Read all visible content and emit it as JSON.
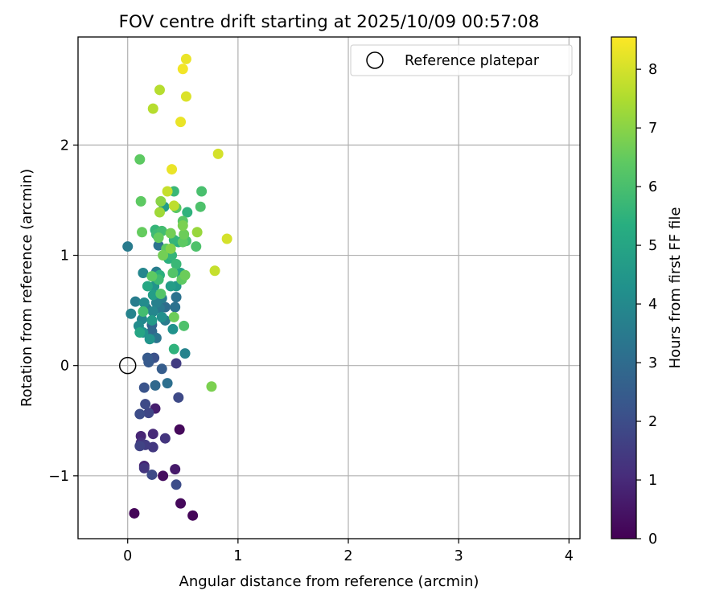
{
  "chart_data": {
    "type": "scatter",
    "title": "FOV centre drift starting at 2025/10/09 00:57:08",
    "xlabel": "Angular distance from reference (arcmin)",
    "ylabel": "Rotation from reference (arcmin)",
    "xlim": [
      -0.45,
      4.1
    ],
    "ylim": [
      -1.57,
      2.98
    ],
    "xticks": [
      0,
      1,
      2,
      3,
      4
    ],
    "yticks": [
      -1,
      0,
      1,
      2
    ],
    "xtick_labels": [
      "0",
      "1",
      "2",
      "3",
      "4"
    ],
    "ytick_labels": [
      "−1",
      "0",
      "1",
      "2"
    ],
    "grid": true,
    "legend": {
      "position": "top-right",
      "entries": [
        {
          "label": "Reference platepar",
          "marker": "open-circle"
        }
      ]
    },
    "reference_point": {
      "x": 0,
      "y": 0
    },
    "colorbar": {
      "label": "Hours from first FF file",
      "min": 0,
      "max": 8.55,
      "ticks": [
        0,
        1,
        2,
        3,
        4,
        5,
        6,
        7,
        8
      ],
      "tick_labels": [
        "0",
        "1",
        "2",
        "3",
        "4",
        "5",
        "6",
        "7",
        "8"
      ],
      "colormap": "viridis"
    },
    "points": [
      {
        "x": 0.06,
        "y": -1.34,
        "t": 0.1
      },
      {
        "x": 0.59,
        "y": -1.36,
        "t": 0.1
      },
      {
        "x": 0.48,
        "y": -1.25,
        "t": 0.2
      },
      {
        "x": 0.44,
        "y": -1.08,
        "t": 2.0
      },
      {
        "x": 0.32,
        "y": -1.0,
        "t": 0.3
      },
      {
        "x": 0.22,
        "y": -0.99,
        "t": 1.9
      },
      {
        "x": 0.43,
        "y": -0.94,
        "t": 0.6
      },
      {
        "x": 0.15,
        "y": -0.93,
        "t": 1.3
      },
      {
        "x": 0.15,
        "y": -0.91,
        "t": 0.8
      },
      {
        "x": 0.23,
        "y": -0.74,
        "t": 1.4
      },
      {
        "x": 0.11,
        "y": -0.73,
        "t": 1.7
      },
      {
        "x": 0.16,
        "y": -0.72,
        "t": 1.5
      },
      {
        "x": 0.12,
        "y": -0.7,
        "t": 1.2
      },
      {
        "x": 0.34,
        "y": -0.66,
        "t": 1.3
      },
      {
        "x": 0.12,
        "y": -0.64,
        "t": 0.9
      },
      {
        "x": 0.23,
        "y": -0.62,
        "t": 1.0
      },
      {
        "x": 0.47,
        "y": -0.58,
        "t": 0.2
      },
      {
        "x": 0.11,
        "y": -0.44,
        "t": 2.0
      },
      {
        "x": 0.19,
        "y": -0.43,
        "t": 1.8
      },
      {
        "x": 0.25,
        "y": -0.39,
        "t": 0.7
      },
      {
        "x": 0.16,
        "y": -0.35,
        "t": 1.9
      },
      {
        "x": 0.46,
        "y": -0.29,
        "t": 1.9
      },
      {
        "x": 0.15,
        "y": -0.2,
        "t": 2.2
      },
      {
        "x": 0.25,
        "y": -0.18,
        "t": 2.9
      },
      {
        "x": 0.36,
        "y": -0.16,
        "t": 3.1
      },
      {
        "x": 0.76,
        "y": -0.19,
        "t": 6.8
      },
      {
        "x": 0.31,
        "y": -0.03,
        "t": 2.5
      },
      {
        "x": 0.19,
        "y": 0.03,
        "t": 2.4
      },
      {
        "x": 0.44,
        "y": 0.02,
        "t": 1.5
      },
      {
        "x": 0.18,
        "y": 0.07,
        "t": 2.4
      },
      {
        "x": 0.24,
        "y": 0.07,
        "t": 2.1
      },
      {
        "x": 0.52,
        "y": 0.11,
        "t": 3.8
      },
      {
        "x": 0.42,
        "y": 0.15,
        "t": 5.5
      },
      {
        "x": 0.2,
        "y": 0.24,
        "t": 4.4
      },
      {
        "x": 0.26,
        "y": 0.25,
        "t": 3.3
      },
      {
        "x": 0.11,
        "y": 0.3,
        "t": 5.0
      },
      {
        "x": 0.14,
        "y": 0.3,
        "t": 4.3
      },
      {
        "x": 0.22,
        "y": 0.31,
        "t": 2.9
      },
      {
        "x": 0.41,
        "y": 0.33,
        "t": 4.3
      },
      {
        "x": 0.51,
        "y": 0.36,
        "t": 6.1
      },
      {
        "x": 0.1,
        "y": 0.36,
        "t": 4.1
      },
      {
        "x": 0.22,
        "y": 0.37,
        "t": 2.7
      },
      {
        "x": 0.22,
        "y": 0.41,
        "t": 4.6
      },
      {
        "x": 0.34,
        "y": 0.41,
        "t": 3.5
      },
      {
        "x": 0.13,
        "y": 0.42,
        "t": 3.9
      },
      {
        "x": 0.42,
        "y": 0.44,
        "t": 6.6
      },
      {
        "x": 0.31,
        "y": 0.44,
        "t": 4.2
      },
      {
        "x": 0.03,
        "y": 0.47,
        "t": 3.8
      },
      {
        "x": 0.14,
        "y": 0.49,
        "t": 5.9
      },
      {
        "x": 0.23,
        "y": 0.49,
        "t": 3.9
      },
      {
        "x": 0.17,
        "y": 0.52,
        "t": 3.5
      },
      {
        "x": 0.29,
        "y": 0.52,
        "t": 3.4
      },
      {
        "x": 0.34,
        "y": 0.53,
        "t": 3.0
      },
      {
        "x": 0.43,
        "y": 0.53,
        "t": 3.2
      },
      {
        "x": 0.07,
        "y": 0.58,
        "t": 3.6
      },
      {
        "x": 0.15,
        "y": 0.57,
        "t": 4.1
      },
      {
        "x": 0.26,
        "y": 0.57,
        "t": 3.7
      },
      {
        "x": 0.31,
        "y": 0.61,
        "t": 3.6
      },
      {
        "x": 0.44,
        "y": 0.62,
        "t": 3.2
      },
      {
        "x": 0.23,
        "y": 0.64,
        "t": 4.7
      },
      {
        "x": 0.3,
        "y": 0.65,
        "t": 6.2
      },
      {
        "x": 0.18,
        "y": 0.72,
        "t": 5.1
      },
      {
        "x": 0.24,
        "y": 0.72,
        "t": 4.4
      },
      {
        "x": 0.39,
        "y": 0.72,
        "t": 4.7
      },
      {
        "x": 0.44,
        "y": 0.72,
        "t": 4.5
      },
      {
        "x": 0.28,
        "y": 0.78,
        "t": 5.8
      },
      {
        "x": 0.49,
        "y": 0.78,
        "t": 6.4
      },
      {
        "x": 0.22,
        "y": 0.81,
        "t": 6.4
      },
      {
        "x": 0.29,
        "y": 0.82,
        "t": 5.4
      },
      {
        "x": 0.52,
        "y": 0.82,
        "t": 6.6
      },
      {
        "x": 0.14,
        "y": 0.84,
        "t": 3.9
      },
      {
        "x": 0.26,
        "y": 0.85,
        "t": 3.6
      },
      {
        "x": 0.41,
        "y": 0.84,
        "t": 6.2
      },
      {
        "x": 0.48,
        "y": 0.84,
        "t": 4.9
      },
      {
        "x": 0.79,
        "y": 0.86,
        "t": 7.8
      },
      {
        "x": 0.44,
        "y": 0.92,
        "t": 5.7
      },
      {
        "x": 0.37,
        "y": 0.97,
        "t": 5.4
      },
      {
        "x": 0.32,
        "y": 1.0,
        "t": 6.7
      },
      {
        "x": 0.4,
        "y": 1.0,
        "t": 5.6
      },
      {
        "x": 0.39,
        "y": 1.06,
        "t": 6.9
      },
      {
        "x": 0.35,
        "y": 1.06,
        "t": 6.4
      },
      {
        "x": 0.62,
        "y": 1.08,
        "t": 6.1
      },
      {
        "x": 0.0,
        "y": 1.08,
        "t": 3.5
      },
      {
        "x": 0.28,
        "y": 1.09,
        "t": 3.2
      },
      {
        "x": 0.46,
        "y": 1.12,
        "t": 5.3
      },
      {
        "x": 0.5,
        "y": 1.12,
        "t": 6.4
      },
      {
        "x": 0.53,
        "y": 1.13,
        "t": 6.0
      },
      {
        "x": 0.42,
        "y": 1.14,
        "t": 5.6
      },
      {
        "x": 0.9,
        "y": 1.15,
        "t": 8.0
      },
      {
        "x": 0.28,
        "y": 1.16,
        "t": 6.5
      },
      {
        "x": 0.26,
        "y": 1.19,
        "t": 5.8
      },
      {
        "x": 0.51,
        "y": 1.19,
        "t": 6.6
      },
      {
        "x": 0.13,
        "y": 1.21,
        "t": 6.5
      },
      {
        "x": 0.39,
        "y": 1.2,
        "t": 6.7
      },
      {
        "x": 0.63,
        "y": 1.21,
        "t": 7.2
      },
      {
        "x": 0.31,
        "y": 1.22,
        "t": 5.9
      },
      {
        "x": 0.25,
        "y": 1.23,
        "t": 5.6
      },
      {
        "x": 0.5,
        "y": 1.27,
        "t": 6.8
      },
      {
        "x": 0.5,
        "y": 1.31,
        "t": 6.3
      },
      {
        "x": 0.54,
        "y": 1.39,
        "t": 5.5
      },
      {
        "x": 0.29,
        "y": 1.39,
        "t": 7.3
      },
      {
        "x": 0.44,
        "y": 1.43,
        "t": 6.3
      },
      {
        "x": 0.33,
        "y": 1.44,
        "t": 4.7
      },
      {
        "x": 0.66,
        "y": 1.44,
        "t": 6.1
      },
      {
        "x": 0.42,
        "y": 1.45,
        "t": 7.7
      },
      {
        "x": 0.12,
        "y": 1.49,
        "t": 6.4
      },
      {
        "x": 0.3,
        "y": 1.49,
        "t": 7.0
      },
      {
        "x": 0.36,
        "y": 1.58,
        "t": 7.8
      },
      {
        "x": 0.42,
        "y": 1.58,
        "t": 5.7
      },
      {
        "x": 0.67,
        "y": 1.58,
        "t": 6.0
      },
      {
        "x": 0.4,
        "y": 1.78,
        "t": 8.3
      },
      {
        "x": 0.11,
        "y": 1.87,
        "t": 6.4
      },
      {
        "x": 0.82,
        "y": 1.92,
        "t": 8.0
      },
      {
        "x": 0.48,
        "y": 2.21,
        "t": 8.3
      },
      {
        "x": 0.23,
        "y": 2.33,
        "t": 7.6
      },
      {
        "x": 0.53,
        "y": 2.44,
        "t": 8.1
      },
      {
        "x": 0.29,
        "y": 2.5,
        "t": 7.6
      },
      {
        "x": 0.5,
        "y": 2.69,
        "t": 8.4
      },
      {
        "x": 0.53,
        "y": 2.78,
        "t": 8.3
      }
    ]
  }
}
